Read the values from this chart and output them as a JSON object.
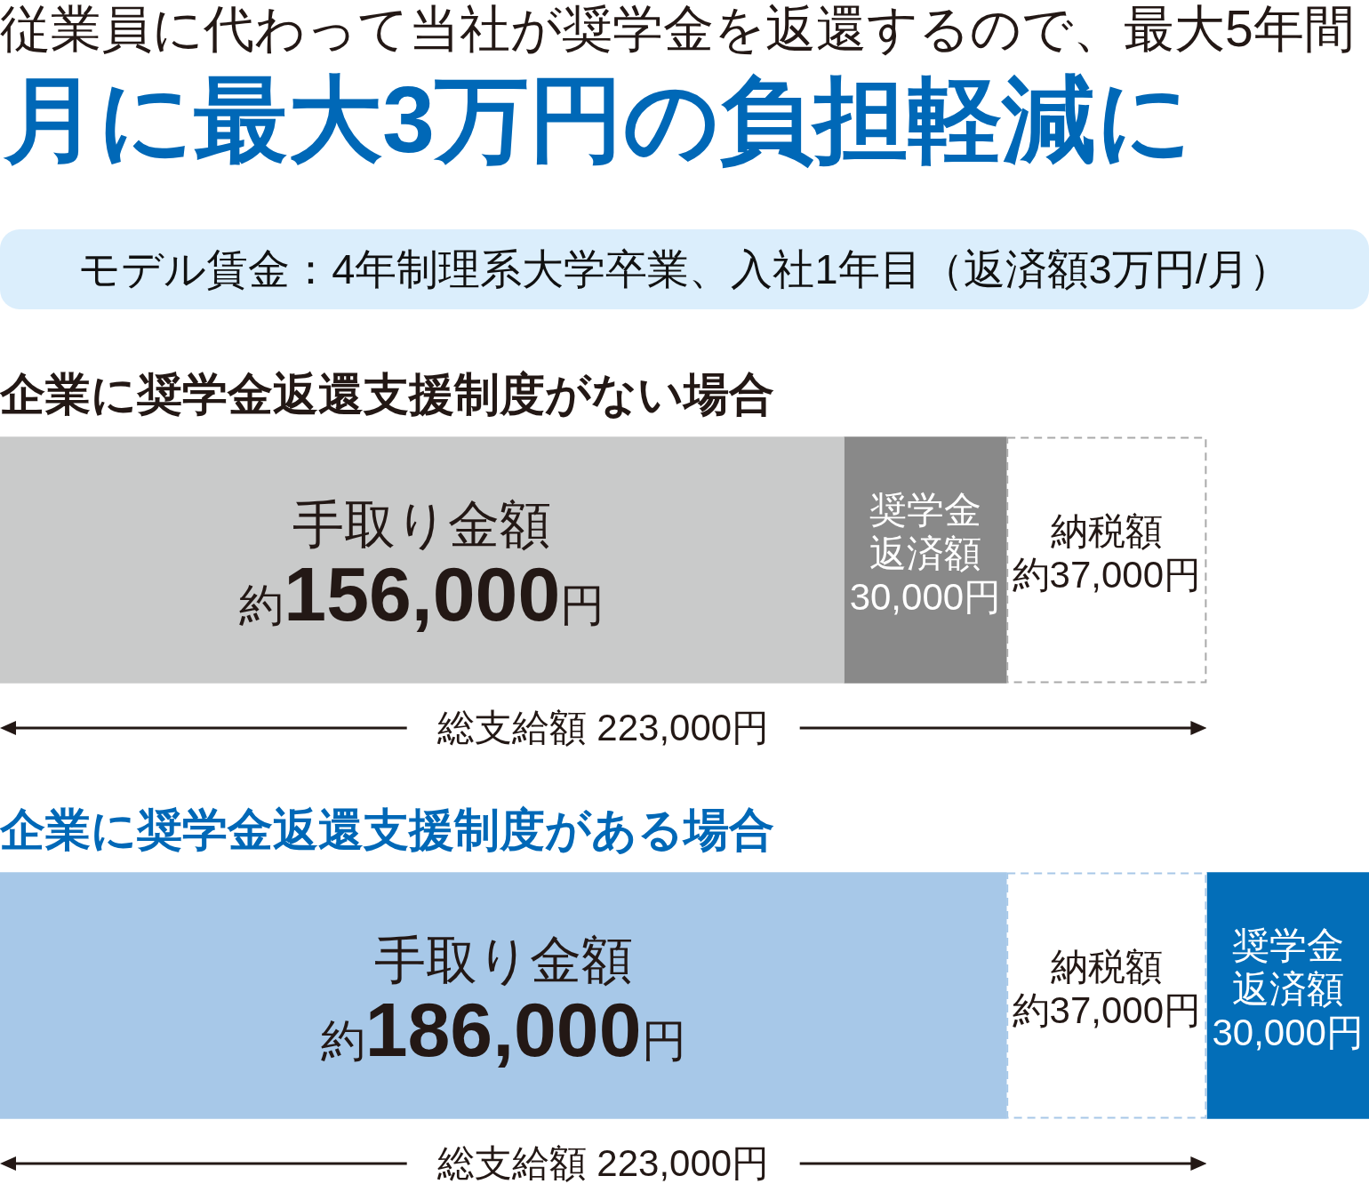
{
  "chart_data": {
    "type": "bar",
    "orientation": "horizontal",
    "stacked": true,
    "subtitle": "従業員に代わって当社が奨学金を返還するので、最大5年間",
    "title": "月に最大3万円の負担軽減に",
    "annotations": [
      "モデル賃金：4年制理系大学卒業、入社1年目（返済額3万円/月）",
      "総支給額 223,000円",
      "総支給額 223,000円"
    ],
    "categories": [
      "企業に奨学金返還支援制度がない場合",
      "企業に奨学金返還支援制度がある場合"
    ],
    "series": [
      {
        "name": "手取り金額",
        "colors": [
          "#c9caca",
          "#a7c8e8"
        ],
        "values": [
          156000,
          186000
        ],
        "value_labels": [
          "約156,000円",
          "約186,000円"
        ]
      },
      {
        "name": "奨学金返済額",
        "color": "#898989",
        "values": [
          30000,
          null
        ],
        "value_labels": [
          "30,000円",
          null
        ]
      },
      {
        "name": "納税額",
        "colors": [
          "#aaaaaa",
          "#a7c8e8"
        ],
        "values": [
          37000,
          37000
        ],
        "value_labels": [
          "約37,000円",
          "約37,000円"
        ],
        "line_style": "dashed"
      },
      {
        "name": "奨学金返済額",
        "color": "#036eb8",
        "values": [
          null,
          30000
        ],
        "value_labels": [
          null,
          "30,000円"
        ]
      }
    ],
    "xlim": [
      0,
      253000
    ],
    "tick_labels": "y"
  }
}
